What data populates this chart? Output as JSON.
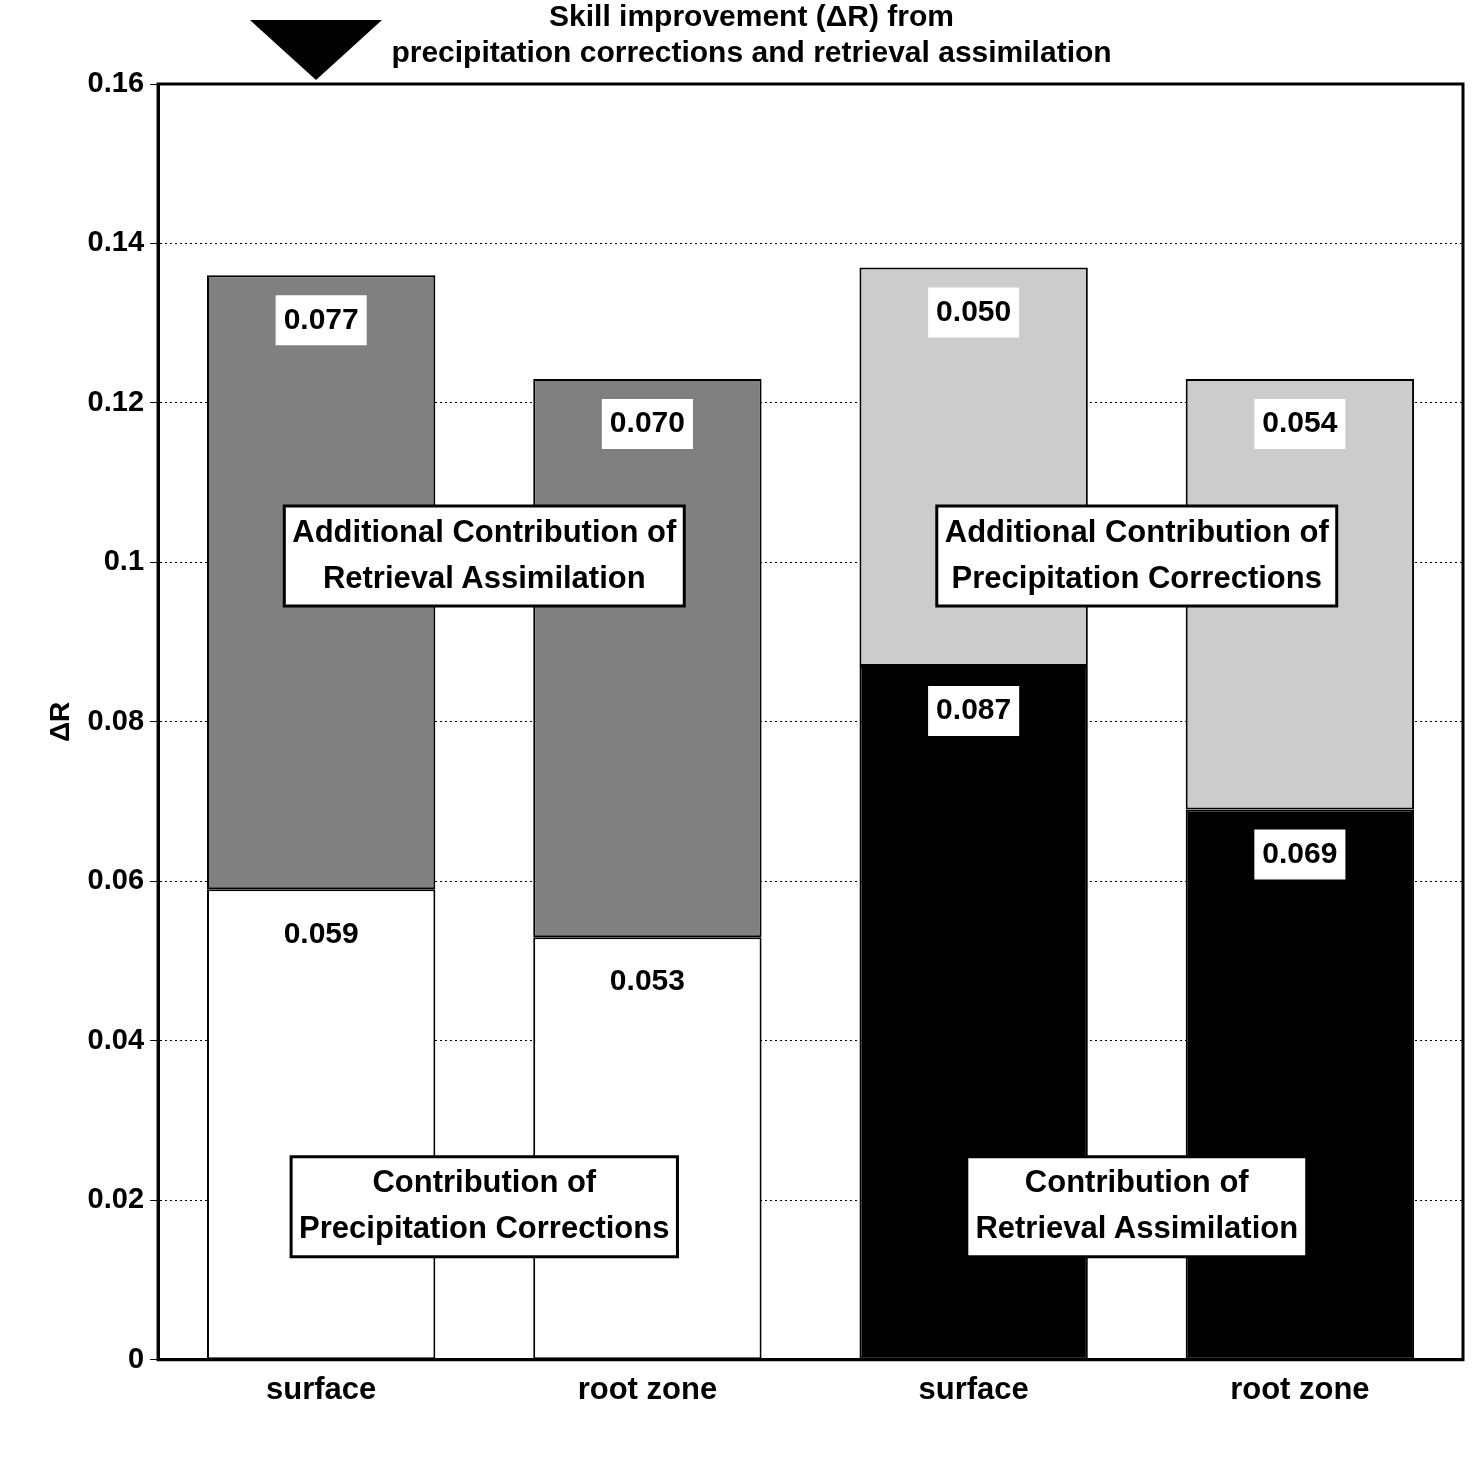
{
  "chart_data": {
    "type": "bar",
    "title": "Skill improvement (ΔR) from\nprecipitation corrections and retrieval assimilation",
    "ylabel": "ΔR",
    "categories": [
      "surface",
      "root zone",
      "surface",
      "root zone"
    ],
    "stacked": true,
    "series": [
      {
        "color": "#ffffff",
        "values": [
          0.059,
          0.053,
          null,
          null
        ],
        "value_labels": [
          "0.059",
          "0.053",
          null,
          null
        ]
      },
      {
        "color": "#000000",
        "values": [
          null,
          null,
          0.087,
          0.069
        ],
        "value_labels": [
          null,
          null,
          "0.087",
          "0.069"
        ]
      },
      {
        "color": "#808080",
        "values": [
          0.077,
          0.07,
          null,
          null
        ],
        "value_labels": [
          "0.077",
          "0.070",
          null,
          null
        ]
      },
      {
        "color": "#cccccc",
        "values": [
          null,
          null,
          0.05,
          0.054
        ],
        "value_labels": [
          null,
          null,
          "0.050",
          "0.054"
        ]
      }
    ],
    "ylim": [
      0,
      0.16
    ],
    "yticks": [
      0,
      0.02,
      0.04,
      0.06,
      0.08,
      0.1,
      0.12,
      0.14,
      0.16
    ],
    "grid": "y",
    "legend": false,
    "annotations": [
      "Additional Contribution of\nRetrieval Assimilation",
      "Contribution of\nPrecipitation Corrections",
      "Additional Contribution of\nPrecipitation Corrections",
      "Contribution of\nRetrieval Assimilation"
    ]
  }
}
